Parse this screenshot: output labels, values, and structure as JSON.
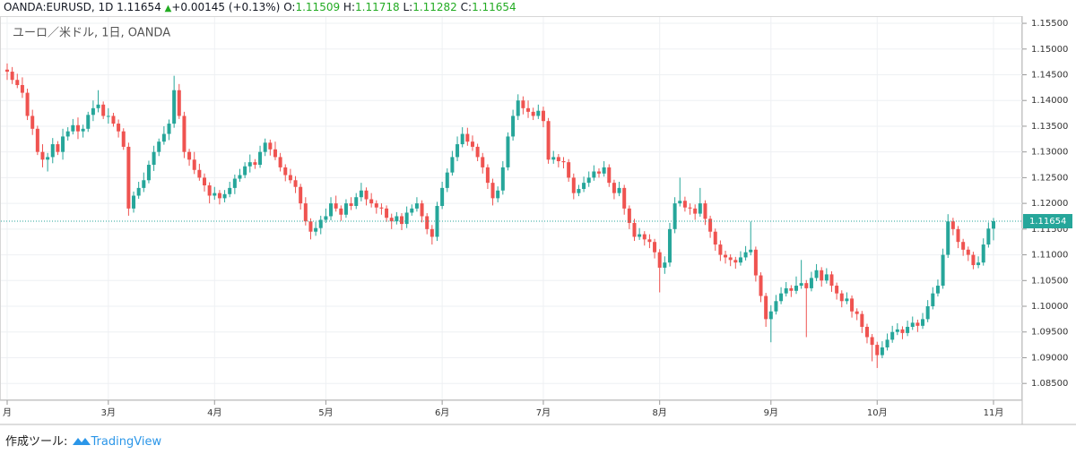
{
  "header": {
    "symbol": "OANDA:EURUSD, 1D",
    "change": "+0.00145 (+0.13%)",
    "o_label": "O:",
    "h_label": "H:",
    "l_label": "L:",
    "c_label": "C:"
  },
  "footer": {
    "made_with": "作成ツール:",
    "brand": "TradingView"
  },
  "chart_data": {
    "type": "candlestick",
    "legend": "ユーロ／米ドル, 1日, OANDA",
    "up_color": "#26a69a",
    "down_color": "#ef5350",
    "grid": true,
    "ylim": [
      1.0819,
      1.1564
    ],
    "yticks": [
      {
        "value": 1.085,
        "label": "1.08500"
      },
      {
        "value": 1.09,
        "label": "1.09000"
      },
      {
        "value": 1.095,
        "label": "1.09500"
      },
      {
        "value": 1.1,
        "label": "1.10000"
      },
      {
        "value": 1.105,
        "label": "1.10500"
      },
      {
        "value": 1.11,
        "label": "1.11000"
      },
      {
        "value": 1.115,
        "label": "1.11500"
      },
      {
        "value": 1.12,
        "label": "1.12000"
      },
      {
        "value": 1.125,
        "label": "1.12500"
      },
      {
        "value": 1.13,
        "label": "1.13000"
      },
      {
        "value": 1.135,
        "label": "1.13500"
      },
      {
        "value": 1.14,
        "label": "1.14000"
      },
      {
        "value": 1.145,
        "label": "1.14500"
      },
      {
        "value": 1.15,
        "label": "1.15000"
      },
      {
        "value": 1.155,
        "label": "1.15500"
      }
    ],
    "xticks": [
      {
        "value": 0,
        "label": "月"
      },
      {
        "value": 20,
        "label": "3月"
      },
      {
        "value": 41,
        "label": "4月"
      },
      {
        "value": 63,
        "label": "5月"
      },
      {
        "value": 86,
        "label": "6月"
      },
      {
        "value": 106,
        "label": "7月"
      },
      {
        "value": 129,
        "label": "8月"
      },
      {
        "value": 151,
        "label": "9月"
      },
      {
        "value": 172,
        "label": "10月"
      },
      {
        "value": 195,
        "label": "11月"
      }
    ],
    "ohlc": [
      [
        1.146,
        1.1472,
        1.144,
        1.1456
      ],
      [
        1.1456,
        1.1465,
        1.1432,
        1.144
      ],
      [
        1.144,
        1.1452,
        1.1424,
        1.143
      ],
      [
        1.143,
        1.1445,
        1.1405,
        1.1415
      ],
      [
        1.1415,
        1.1423,
        1.1362,
        1.137
      ],
      [
        1.137,
        1.1382,
        1.1333,
        1.1345
      ],
      [
        1.1345,
        1.1351,
        1.1294,
        1.13
      ],
      [
        1.13,
        1.1315,
        1.127,
        1.1285
      ],
      [
        1.1285,
        1.1298,
        1.1262,
        1.129
      ],
      [
        1.129,
        1.1327,
        1.1278,
        1.1315
      ],
      [
        1.1315,
        1.1321,
        1.1294,
        1.13
      ],
      [
        1.13,
        1.1345,
        1.1285,
        1.133
      ],
      [
        1.133,
        1.1348,
        1.1322,
        1.134
      ],
      [
        1.134,
        1.1364,
        1.1334,
        1.1352
      ],
      [
        1.1352,
        1.1367,
        1.1325,
        1.134
      ],
      [
        1.134,
        1.1353,
        1.1328,
        1.1345
      ],
      [
        1.1345,
        1.1378,
        1.1339,
        1.1372
      ],
      [
        1.1372,
        1.14,
        1.136,
        1.1385
      ],
      [
        1.1385,
        1.142,
        1.1377,
        1.1392
      ],
      [
        1.1392,
        1.1398,
        1.1364,
        1.137
      ],
      [
        1.137,
        1.1385,
        1.1355,
        1.137
      ],
      [
        1.137,
        1.1376,
        1.1349,
        1.1355
      ],
      [
        1.1355,
        1.1363,
        1.1328,
        1.134
      ],
      [
        1.134,
        1.1346,
        1.1304,
        1.131
      ],
      [
        1.131,
        1.1318,
        1.1176,
        1.119
      ],
      [
        1.119,
        1.1223,
        1.1182,
        1.1215
      ],
      [
        1.1215,
        1.1242,
        1.1209,
        1.123
      ],
      [
        1.123,
        1.126,
        1.1222,
        1.1245
      ],
      [
        1.1245,
        1.1283,
        1.1239,
        1.1275
      ],
      [
        1.1275,
        1.1312,
        1.1263,
        1.13
      ],
      [
        1.13,
        1.1326,
        1.1292,
        1.132
      ],
      [
        1.132,
        1.135,
        1.1314,
        1.1335
      ],
      [
        1.1335,
        1.1363,
        1.1323,
        1.1355
      ],
      [
        1.1355,
        1.1448,
        1.1347,
        1.142
      ],
      [
        1.142,
        1.1432,
        1.1364,
        1.137
      ],
      [
        1.137,
        1.1378,
        1.1288,
        1.13
      ],
      [
        1.13,
        1.1306,
        1.1273,
        1.1285
      ],
      [
        1.1285,
        1.13,
        1.1257,
        1.1265
      ],
      [
        1.1265,
        1.1277,
        1.1244,
        1.125
      ],
      [
        1.125,
        1.1258,
        1.1223,
        1.1235
      ],
      [
        1.1235,
        1.1241,
        1.12,
        1.1215
      ],
      [
        1.1215,
        1.1232,
        1.1207,
        1.122
      ],
      [
        1.122,
        1.1226,
        1.1198,
        1.121
      ],
      [
        1.121,
        1.1226,
        1.1202,
        1.1218
      ],
      [
        1.1218,
        1.1242,
        1.1212,
        1.123
      ],
      [
        1.123,
        1.1256,
        1.1218,
        1.1248
      ],
      [
        1.1248,
        1.1267,
        1.1242,
        1.1255
      ],
      [
        1.1255,
        1.128,
        1.1249,
        1.1272
      ],
      [
        1.1272,
        1.1295,
        1.126,
        1.128
      ],
      [
        1.128,
        1.1286,
        1.1267,
        1.1275
      ],
      [
        1.1275,
        1.1312,
        1.1269,
        1.13
      ],
      [
        1.13,
        1.1326,
        1.1292,
        1.1318
      ],
      [
        1.1318,
        1.1324,
        1.1293,
        1.1305
      ],
      [
        1.1305,
        1.132,
        1.1284,
        1.129
      ],
      [
        1.129,
        1.1298,
        1.1262,
        1.127
      ],
      [
        1.127,
        1.1276,
        1.1243,
        1.1255
      ],
      [
        1.1255,
        1.1267,
        1.1239,
        1.1245
      ],
      [
        1.1245,
        1.1253,
        1.122,
        1.1232
      ],
      [
        1.1232,
        1.1238,
        1.1188,
        1.12
      ],
      [
        1.12,
        1.1212,
        1.1157,
        1.1165
      ],
      [
        1.1165,
        1.1171,
        1.113,
        1.1145
      ],
      [
        1.1145,
        1.1164,
        1.1137,
        1.1152
      ],
      [
        1.1152,
        1.1176,
        1.114,
        1.1168
      ],
      [
        1.1168,
        1.119,
        1.1162,
        1.1175
      ],
      [
        1.1175,
        1.1212,
        1.1167,
        1.12
      ],
      [
        1.12,
        1.1215,
        1.1184,
        1.119
      ],
      [
        1.119,
        1.1196,
        1.1166,
        1.1178
      ],
      [
        1.1178,
        1.1208,
        1.1172,
        1.12
      ],
      [
        1.12,
        1.1212,
        1.1187,
        1.1195
      ],
      [
        1.1195,
        1.122,
        1.1189,
        1.1212
      ],
      [
        1.1212,
        1.124,
        1.1204,
        1.1225
      ],
      [
        1.1225,
        1.1231,
        1.1196,
        1.1208
      ],
      [
        1.1208,
        1.122,
        1.1192,
        1.12
      ],
      [
        1.12,
        1.1206,
        1.118,
        1.1192
      ],
      [
        1.1192,
        1.12,
        1.1178,
        1.119
      ],
      [
        1.119,
        1.1196,
        1.1164,
        1.1172
      ],
      [
        1.1172,
        1.118,
        1.115,
        1.1165
      ],
      [
        1.1165,
        1.1183,
        1.1159,
        1.1175
      ],
      [
        1.1175,
        1.1181,
        1.1148,
        1.116
      ],
      [
        1.116,
        1.1194,
        1.1152,
        1.1182
      ],
      [
        1.1182,
        1.1198,
        1.1176,
        1.119
      ],
      [
        1.119,
        1.1212,
        1.1184,
        1.12
      ],
      [
        1.12,
        1.1206,
        1.1163,
        1.1175
      ],
      [
        1.1175,
        1.1181,
        1.114,
        1.115
      ],
      [
        1.115,
        1.1158,
        1.112,
        1.1135
      ],
      [
        1.1135,
        1.1203,
        1.1127,
        1.1195
      ],
      [
        1.1195,
        1.1242,
        1.1189,
        1.123
      ],
      [
        1.123,
        1.1268,
        1.1222,
        1.126
      ],
      [
        1.126,
        1.1302,
        1.1254,
        1.129
      ],
      [
        1.129,
        1.133,
        1.1282,
        1.1315
      ],
      [
        1.1315,
        1.1348,
        1.1309,
        1.1335
      ],
      [
        1.1335,
        1.1347,
        1.1312,
        1.132
      ],
      [
        1.132,
        1.1332,
        1.1302,
        1.131
      ],
      [
        1.131,
        1.1316,
        1.1282,
        1.129
      ],
      [
        1.129,
        1.1298,
        1.1258,
        1.127
      ],
      [
        1.127,
        1.1276,
        1.1228,
        1.124
      ],
      [
        1.124,
        1.1248,
        1.1196,
        1.121
      ],
      [
        1.121,
        1.1233,
        1.1202,
        1.1225
      ],
      [
        1.1225,
        1.1282,
        1.1217,
        1.127
      ],
      [
        1.127,
        1.1338,
        1.1264,
        1.133
      ],
      [
        1.133,
        1.1382,
        1.1322,
        1.137
      ],
      [
        1.137,
        1.1412,
        1.1362,
        1.14
      ],
      [
        1.14,
        1.1408,
        1.1373,
        1.1385
      ],
      [
        1.1385,
        1.14,
        1.1366,
        1.1378
      ],
      [
        1.1378,
        1.1386,
        1.1362,
        1.137
      ],
      [
        1.137,
        1.1392,
        1.1364,
        1.138
      ],
      [
        1.138,
        1.1388,
        1.1348,
        1.136
      ],
      [
        1.136,
        1.1366,
        1.1277,
        1.1285
      ],
      [
        1.1285,
        1.1302,
        1.1277,
        1.129
      ],
      [
        1.129,
        1.1296,
        1.127,
        1.1282
      ],
      [
        1.1282,
        1.129,
        1.1268,
        1.128
      ],
      [
        1.128,
        1.1286,
        1.1242,
        1.125
      ],
      [
        1.125,
        1.1258,
        1.1208,
        1.122
      ],
      [
        1.122,
        1.1236,
        1.1214,
        1.1228
      ],
      [
        1.1228,
        1.1252,
        1.1222,
        1.124
      ],
      [
        1.124,
        1.1262,
        1.1232,
        1.125
      ],
      [
        1.125,
        1.1274,
        1.1244,
        1.1262
      ],
      [
        1.1262,
        1.1268,
        1.125,
        1.1258
      ],
      [
        1.1258,
        1.1282,
        1.1252,
        1.127
      ],
      [
        1.127,
        1.1276,
        1.1232,
        1.124
      ],
      [
        1.124,
        1.1246,
        1.1208,
        1.122
      ],
      [
        1.122,
        1.1242,
        1.1214,
        1.123
      ],
      [
        1.123,
        1.1236,
        1.1178,
        1.119
      ],
      [
        1.119,
        1.1196,
        1.115,
        1.1162
      ],
      [
        1.1162,
        1.117,
        1.1127,
        1.1135
      ],
      [
        1.1135,
        1.1152,
        1.1129,
        1.114
      ],
      [
        1.114,
        1.1146,
        1.1118,
        1.113
      ],
      [
        1.113,
        1.114,
        1.1113,
        1.1125
      ],
      [
        1.1125,
        1.1131,
        1.1093,
        1.1105
      ],
      [
        1.1105,
        1.1111,
        1.1027,
        1.1075
      ],
      [
        1.1075,
        1.1097,
        1.1063,
        1.1085
      ],
      [
        1.1085,
        1.1162,
        1.1077,
        1.115
      ],
      [
        1.115,
        1.1212,
        1.1142,
        1.12
      ],
      [
        1.12,
        1.125,
        1.1194,
        1.1205
      ],
      [
        1.1205,
        1.1213,
        1.1184,
        1.1192
      ],
      [
        1.1192,
        1.12,
        1.1178,
        1.119
      ],
      [
        1.119,
        1.1198,
        1.1168,
        1.118
      ],
      [
        1.118,
        1.123,
        1.1174,
        1.12
      ],
      [
        1.12,
        1.1206,
        1.1158,
        1.117
      ],
      [
        1.117,
        1.1176,
        1.1133,
        1.1145
      ],
      [
        1.1145,
        1.1151,
        1.1108,
        1.112
      ],
      [
        1.112,
        1.1128,
        1.1088,
        1.11
      ],
      [
        1.11,
        1.1108,
        1.1083,
        1.1095
      ],
      [
        1.1095,
        1.1101,
        1.1078,
        1.109
      ],
      [
        1.109,
        1.1096,
        1.1073,
        1.1085
      ],
      [
        1.1085,
        1.1107,
        1.1079,
        1.1095
      ],
      [
        1.1095,
        1.1117,
        1.1089,
        1.1105
      ],
      [
        1.1105,
        1.1165,
        1.1099,
        1.111
      ],
      [
        1.111,
        1.1116,
        1.1048,
        1.106
      ],
      [
        1.106,
        1.1066,
        1.1008,
        1.102
      ],
      [
        1.102,
        1.1026,
        1.096,
        1.0975
      ],
      [
        1.0975,
        1.1002,
        1.093,
        1.099
      ],
      [
        1.099,
        1.1022,
        1.0984,
        1.101
      ],
      [
        1.101,
        1.1037,
        1.1004,
        1.1025
      ],
      [
        1.1025,
        1.1047,
        1.1019,
        1.1035
      ],
      [
        1.1035,
        1.1041,
        1.1018,
        1.103
      ],
      [
        1.103,
        1.1058,
        1.1024,
        1.104
      ],
      [
        1.104,
        1.109,
        1.1034,
        1.1045
      ],
      [
        1.1045,
        1.1051,
        1.094,
        1.1035
      ],
      [
        1.1035,
        1.1067,
        1.1029,
        1.1055
      ],
      [
        1.1055,
        1.1082,
        1.1049,
        1.107
      ],
      [
        1.107,
        1.1076,
        1.1038,
        1.105
      ],
      [
        1.105,
        1.1074,
        1.1044,
        1.1062
      ],
      [
        1.1062,
        1.1068,
        1.1028,
        1.104
      ],
      [
        1.104,
        1.1046,
        1.1013,
        1.1025
      ],
      [
        1.1025,
        1.1031,
        1.0998,
        1.101
      ],
      [
        1.101,
        1.1027,
        1.1004,
        1.1015
      ],
      [
        1.1015,
        1.1021,
        1.0978,
        1.099
      ],
      [
        1.099,
        1.0996,
        1.0973,
        1.0985
      ],
      [
        1.0985,
        1.0991,
        1.0948,
        1.096
      ],
      [
        1.096,
        1.0966,
        1.0928,
        1.094
      ],
      [
        1.094,
        1.0946,
        1.0893,
        1.0925
      ],
      [
        1.0925,
        1.0931,
        1.088,
        1.0905
      ],
      [
        1.0905,
        1.0932,
        1.0899,
        1.092
      ],
      [
        1.092,
        1.0947,
        1.0914,
        1.0935
      ],
      [
        1.0935,
        1.0962,
        1.0929,
        1.095
      ],
      [
        1.095,
        1.0967,
        1.0944,
        1.0955
      ],
      [
        1.0955,
        1.0961,
        1.0936,
        1.0948
      ],
      [
        1.0948,
        1.0972,
        1.0942,
        1.096
      ],
      [
        1.096,
        1.098,
        1.0954,
        1.0968
      ],
      [
        1.0968,
        1.0974,
        1.095,
        1.0962
      ],
      [
        1.0962,
        1.0987,
        1.0956,
        1.0975
      ],
      [
        1.0975,
        1.1012,
        1.0969,
        1.1
      ],
      [
        1.1,
        1.1037,
        1.0994,
        1.1025
      ],
      [
        1.1025,
        1.1052,
        1.1019,
        1.104
      ],
      [
        1.104,
        1.1112,
        1.1034,
        1.11
      ],
      [
        1.11,
        1.1179,
        1.1094,
        1.1165
      ],
      [
        1.1165,
        1.1172,
        1.1138,
        1.115
      ],
      [
        1.115,
        1.1156,
        1.1113,
        1.1125
      ],
      [
        1.1125,
        1.1131,
        1.1098,
        1.111
      ],
      [
        1.111,
        1.1116,
        1.1088,
        1.11
      ],
      [
        1.11,
        1.1106,
        1.1072,
        1.108
      ],
      [
        1.108,
        1.1097,
        1.1074,
        1.1085
      ],
      [
        1.1085,
        1.1132,
        1.1079,
        1.112
      ],
      [
        1.112,
        1.1163,
        1.1114,
        1.1151
      ],
      [
        1.11509,
        1.11718,
        1.11282,
        1.11654
      ]
    ]
  }
}
